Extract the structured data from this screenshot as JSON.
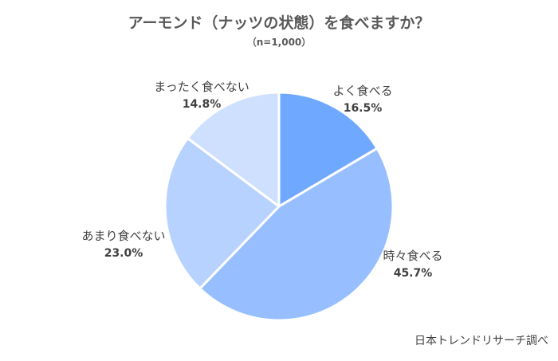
{
  "title": "アーモンド（ナッツの状態）を食べますか？",
  "subtitle": "（n=1,000）",
  "source": "日本トレンドリサーチ調べ",
  "chart_data": {
    "type": "pie",
    "title": "アーモンド（ナッツの状態）を食べますか？",
    "subtitle": "（n=1,000）",
    "slices": [
      {
        "label": "よく食べる",
        "value": 16.5,
        "display": "16.5%",
        "color": "#6fa8ff"
      },
      {
        "label": "時々食べる",
        "value": 45.7,
        "display": "45.7%",
        "color": "#97bfff"
      },
      {
        "label": "あまり食べない",
        "value": 23.0,
        "display": "23.0%",
        "color": "#b8d2ff"
      },
      {
        "label": "まったく食べない",
        "value": 14.8,
        "display": "14.8%",
        "color": "#cfe0ff"
      }
    ],
    "start": "12 o'clock",
    "direction": "clockwise"
  }
}
